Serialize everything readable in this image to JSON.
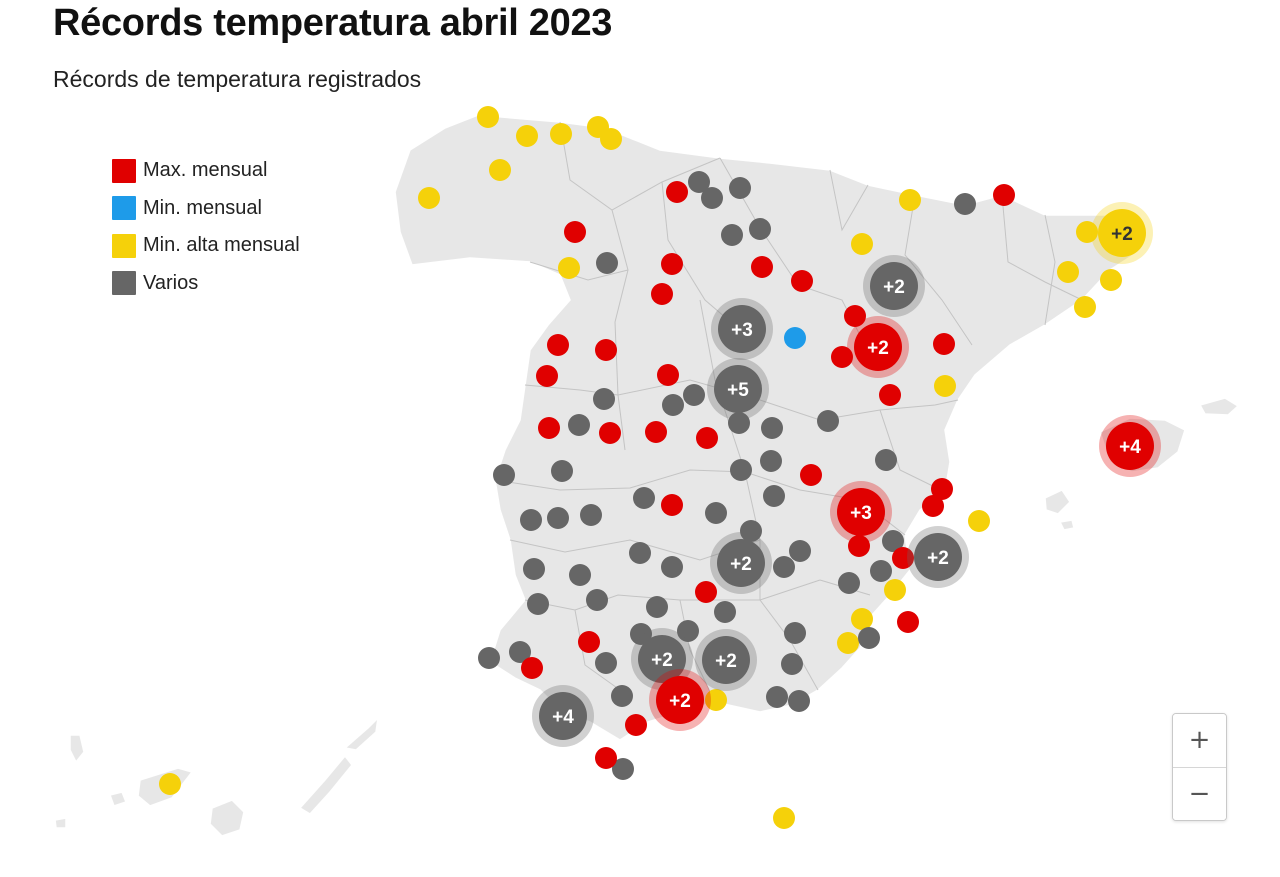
{
  "header": {
    "title": "Récords temperatura abril 2023",
    "subtitle": "Récords de temperatura registrados"
  },
  "legend": [
    {
      "key": "max",
      "label": "Max. mensual",
      "color": "#e00000"
    },
    {
      "key": "min",
      "label": "Min. mensual",
      "color": "#1e9be9"
    },
    {
      "key": "minalta",
      "label": "Min. alta mensual",
      "color": "#f5d10a"
    },
    {
      "key": "varios",
      "label": "Varios",
      "color": "#666666"
    }
  ],
  "zoom_controls": {
    "zoom_in": "+",
    "zoom_out": "−"
  },
  "clusters": [
    {
      "category": "minalta",
      "label": "+2"
    },
    {
      "category": "varios",
      "label": "+2"
    },
    {
      "category": "max",
      "label": "+2"
    },
    {
      "category": "varios",
      "label": "+3"
    },
    {
      "category": "varios",
      "label": "+5"
    },
    {
      "category": "max",
      "label": "+4"
    },
    {
      "category": "max",
      "label": "+3"
    },
    {
      "category": "varios",
      "label": "+2"
    },
    {
      "category": "varios",
      "label": "+2"
    },
    {
      "category": "varios",
      "label": "+2"
    },
    {
      "category": "varios",
      "label": "+2"
    },
    {
      "category": "max",
      "label": "+2"
    },
    {
      "category": "varios",
      "label": "+4"
    }
  ]
}
